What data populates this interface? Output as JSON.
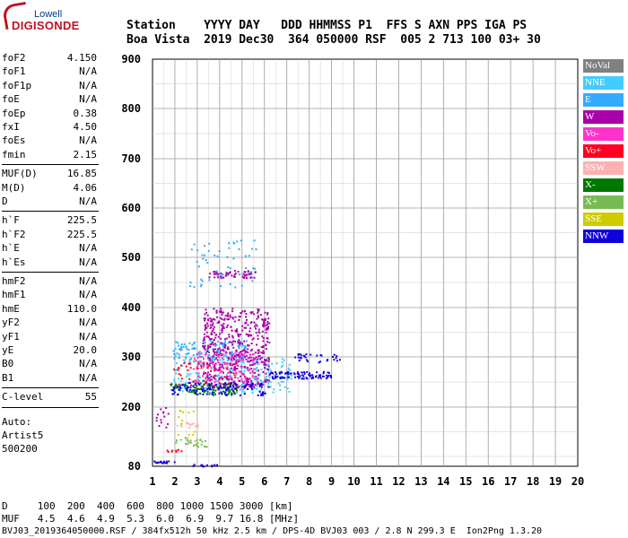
{
  "logo": {
    "top": "Lowell",
    "main": "DIGISONDE"
  },
  "header": {
    "line1": "Station    YYYY DAY   DDD HHMMSS P1  FFS S AXN PPS IGA PS",
    "line2": "Boa Vista  2019 Dec30  364 050000 RSF  005 2 713 100 03+ 30"
  },
  "params": {
    "group1": [
      {
        "k": "foF2",
        "v": "4.150"
      },
      {
        "k": "foF1",
        "v": "N/A"
      },
      {
        "k": "foF1p",
        "v": "N/A"
      },
      {
        "k": "foE",
        "v": "N/A"
      },
      {
        "k": "foEp",
        "v": "0.38"
      },
      {
        "k": "fxI",
        "v": "4.50"
      },
      {
        "k": "foEs",
        "v": "N/A"
      },
      {
        "k": "fmin",
        "v": "2.15"
      }
    ],
    "group2": [
      {
        "k": "MUF(D)",
        "v": "16.85"
      },
      {
        "k": "M(D)",
        "v": "4.06"
      },
      {
        "k": "D",
        "v": "N/A"
      }
    ],
    "group3": [
      {
        "k": "h`F",
        "v": "225.5"
      },
      {
        "k": "h`F2",
        "v": "225.5"
      },
      {
        "k": "h`E",
        "v": "N/A"
      },
      {
        "k": "h`Es",
        "v": "N/A"
      }
    ],
    "group4": [
      {
        "k": "hmF2",
        "v": "N/A"
      },
      {
        "k": "hmF1",
        "v": "N/A"
      },
      {
        "k": "hmE",
        "v": "110.0"
      },
      {
        "k": "yF2",
        "v": "N/A"
      },
      {
        "k": "yF1",
        "v": "N/A"
      },
      {
        "k": "yE",
        "v": "20.0"
      },
      {
        "k": "B0",
        "v": "N/A"
      },
      {
        "k": "B1",
        "v": "N/A"
      }
    ],
    "group5": [
      {
        "k": "C-level",
        "v": "55"
      }
    ],
    "auto": [
      "Auto:",
      "Artist5",
      "500200"
    ]
  },
  "legend": [
    {
      "label": "NoVal",
      "color": "#808080"
    },
    {
      "label": "NNE",
      "color": "#44ccff"
    },
    {
      "label": "E",
      "color": "#33aaff"
    },
    {
      "label": "W",
      "color": "#aa00aa"
    },
    {
      "label": "Vo-",
      "color": "#ff33cc"
    },
    {
      "label": "Vo+",
      "color": "#ff0022"
    },
    {
      "label": "SSW",
      "color": "#ffb0b0"
    },
    {
      "label": "X-",
      "color": "#007700"
    },
    {
      "label": "X+",
      "color": "#77bb55"
    },
    {
      "label": "SSE",
      "color": "#cccc00"
    },
    {
      "label": "NNW",
      "color": "#1100dd"
    }
  ],
  "footer": {
    "line1": "D     100  200  400  600  800 1000 1500 3000 [km]",
    "line2": "MUF   4.5  4.6  4.9  5.3  6.0  6.9  9.7 16.8 [MHz]",
    "line3": "BVJ03_2019364050000.RSF / 384fx512h 50 kHz 2.5 km / DPS-4D BVJ03 003 / 2.8 N 299.3 E  Ion2Png 1.3.20"
  },
  "chart_data": {
    "type": "scatter",
    "title": "",
    "xlabel": "",
    "ylabel": "",
    "xlim": [
      1,
      20
    ],
    "ylim": [
      80,
      900
    ],
    "x_ticks": [
      1,
      2,
      3,
      4,
      5,
      6,
      7,
      8,
      9,
      10,
      11,
      12,
      13,
      14,
      15,
      16,
      17,
      18,
      19,
      20
    ],
    "y_ticks": [
      80,
      200,
      300,
      400,
      500,
      600,
      700,
      800,
      900
    ],
    "grid": true,
    "legend_position": "right",
    "clusters": [
      {
        "name": "NNE",
        "x": [
          1.9,
          7.2
        ],
        "y": [
          230,
          300
        ],
        "n": 260
      },
      {
        "name": "E",
        "x": [
          1.9,
          5.2
        ],
        "y": [
          295,
          335
        ],
        "n": 140
      },
      {
        "name": "E",
        "x": [
          2.6,
          5.6
        ],
        "y": [
          440,
          540
        ],
        "n": 60
      },
      {
        "name": "W",
        "x": [
          3.2,
          6.2
        ],
        "y": [
          240,
          400
        ],
        "n": 520
      },
      {
        "name": "W",
        "x": [
          3.5,
          5.6
        ],
        "y": [
          460,
          475
        ],
        "n": 50
      },
      {
        "name": "W",
        "x": [
          1.1,
          2.0
        ],
        "y": [
          160,
          200
        ],
        "n": 14
      },
      {
        "name": "Vo-",
        "x": [
          2.8,
          5.6
        ],
        "y": [
          250,
          310
        ],
        "n": 110
      },
      {
        "name": "Vo+",
        "x": [
          1.9,
          4.8
        ],
        "y": [
          240,
          290
        ],
        "n": 50
      },
      {
        "name": "SSW",
        "x": [
          2.0,
          3.0
        ],
        "y": [
          160,
          170
        ],
        "n": 20
      },
      {
        "name": "X-",
        "x": [
          1.7,
          4.8
        ],
        "y": [
          225,
          250
        ],
        "n": 90
      },
      {
        "name": "X+",
        "x": [
          2.0,
          3.4
        ],
        "y": [
          120,
          140
        ],
        "n": 25
      },
      {
        "name": "SSE",
        "x": [
          2.1,
          2.9
        ],
        "y": [
          125,
          200
        ],
        "n": 15
      },
      {
        "name": "NNW",
        "x": [
          1.8,
          6.0
        ],
        "y": [
          225,
          250
        ],
        "n": 110
      },
      {
        "name": "NNW",
        "x": [
          6.2,
          9.0
        ],
        "y": [
          258,
          272
        ],
        "n": 90
      },
      {
        "name": "NNW",
        "x": [
          7.2,
          9.4
        ],
        "y": [
          290,
          308
        ],
        "n": 30
      },
      {
        "name": "NNW",
        "x": [
          1.0,
          2.0
        ],
        "y": [
          88,
          92
        ],
        "n": 18
      },
      {
        "name": "NNW",
        "x": [
          2.5,
          4.2
        ],
        "y": [
          80,
          85
        ],
        "n": 12
      },
      {
        "name": "Vo+",
        "x": [
          1.6,
          2.3
        ],
        "y": [
          110,
          116
        ],
        "n": 8
      }
    ]
  }
}
